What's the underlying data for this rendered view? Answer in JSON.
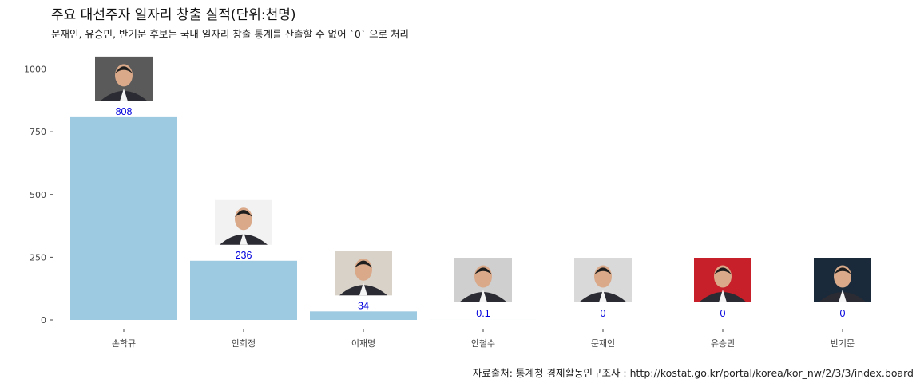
{
  "title": "주요 대선주자 일자리 창출 실적(단위:천명)",
  "subtitle": "문재인, 유승민, 반기문 후보는 국내 일자리 창출 통계를 산출할 수 없어 `0` 으로 처리",
  "caption": "자료출처: 통계청 경제활동인구조사 : http://kostat.go.kr/portal/korea/kor_nw/2/3/3/index.board",
  "chart_data": {
    "type": "bar",
    "title": "주요 대선주자 일자리 창출 실적(단위:천명)",
    "xlabel": "",
    "ylabel": "",
    "categories": [
      "손학규",
      "안희정",
      "이재명",
      "안철수",
      "문재인",
      "유승민",
      "반기문"
    ],
    "values": [
      808,
      236,
      34,
      0.1,
      0,
      0,
      0
    ],
    "value_labels": [
      "808",
      "236",
      "34",
      "0.1",
      "0",
      "0",
      "0"
    ],
    "ylim": [
      0,
      1100
    ],
    "yticks": [
      0,
      250,
      500,
      750,
      1000
    ],
    "grid": false,
    "legend": "none",
    "bar_color": "#9ecae1",
    "label_color": "#0000dd",
    "photo_background_colors": [
      "#5a5a5a",
      "#f2f2f2",
      "#d8d2c8",
      "#cfcfcf",
      "#d9d9d9",
      "#c8202a",
      "#1a2a3a"
    ]
  }
}
